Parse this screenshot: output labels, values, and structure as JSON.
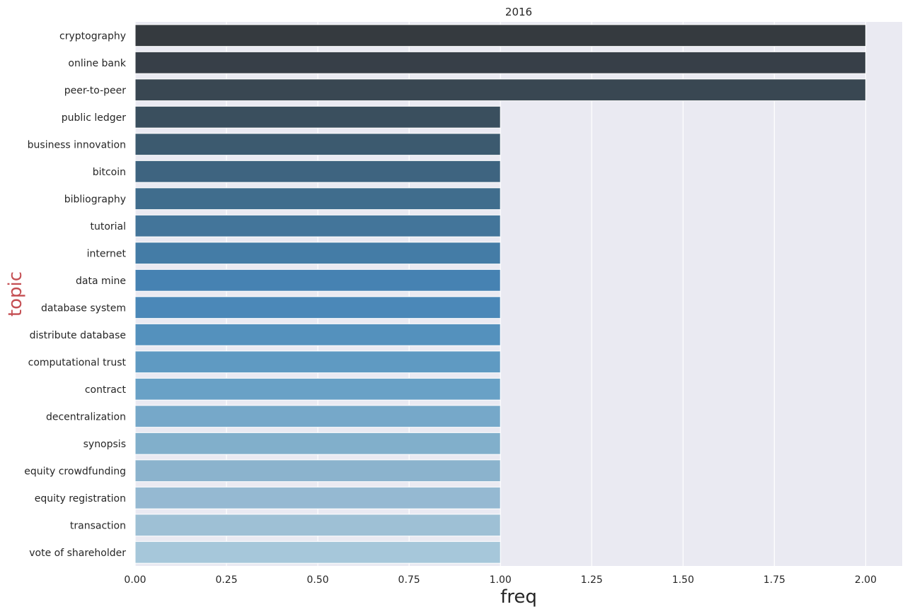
{
  "chart_data": {
    "type": "bar",
    "orientation": "horizontal",
    "title": "2016",
    "xlabel": "freq",
    "ylabel": "topic",
    "ylabel_color": "#c44e52",
    "xlim": [
      0,
      2.1
    ],
    "xticks": [
      "0.00",
      "0.25",
      "0.50",
      "0.75",
      "1.00",
      "1.25",
      "1.50",
      "1.75",
      "2.00"
    ],
    "grid": true,
    "background": "#eaeaf2",
    "palette": "Blues_d (dark to light)",
    "categories": [
      "cryptography",
      "online bank",
      "peer-to-peer",
      "public ledger",
      "business innovation",
      "bitcoin",
      "bibliography",
      "tutorial",
      "internet",
      "data mine",
      "database system",
      "distribute database",
      "computational trust",
      "contract",
      "decentralization",
      "synopsis",
      "equity crowdfunding",
      "equity registration",
      "transaction",
      "vote of shareholder"
    ],
    "values": [
      2,
      2,
      2,
      1,
      1,
      1,
      1,
      1,
      1,
      1,
      1,
      1,
      1,
      1,
      1,
      1,
      1,
      1,
      1,
      1
    ],
    "colors": [
      "#353a3f",
      "#373f48",
      "#394752",
      "#3a4f5e",
      "#3c5a6f",
      "#3e6480",
      "#406d8d",
      "#43759a",
      "#447ca6",
      "#4682b2",
      "#4b88b8",
      "#5491bd",
      "#5f9ac2",
      "#69a1c6",
      "#76a8c9",
      "#81afcb",
      "#8bb3cd",
      "#95b9d2",
      "#9ec0d5",
      "#a6c7da"
    ]
  }
}
